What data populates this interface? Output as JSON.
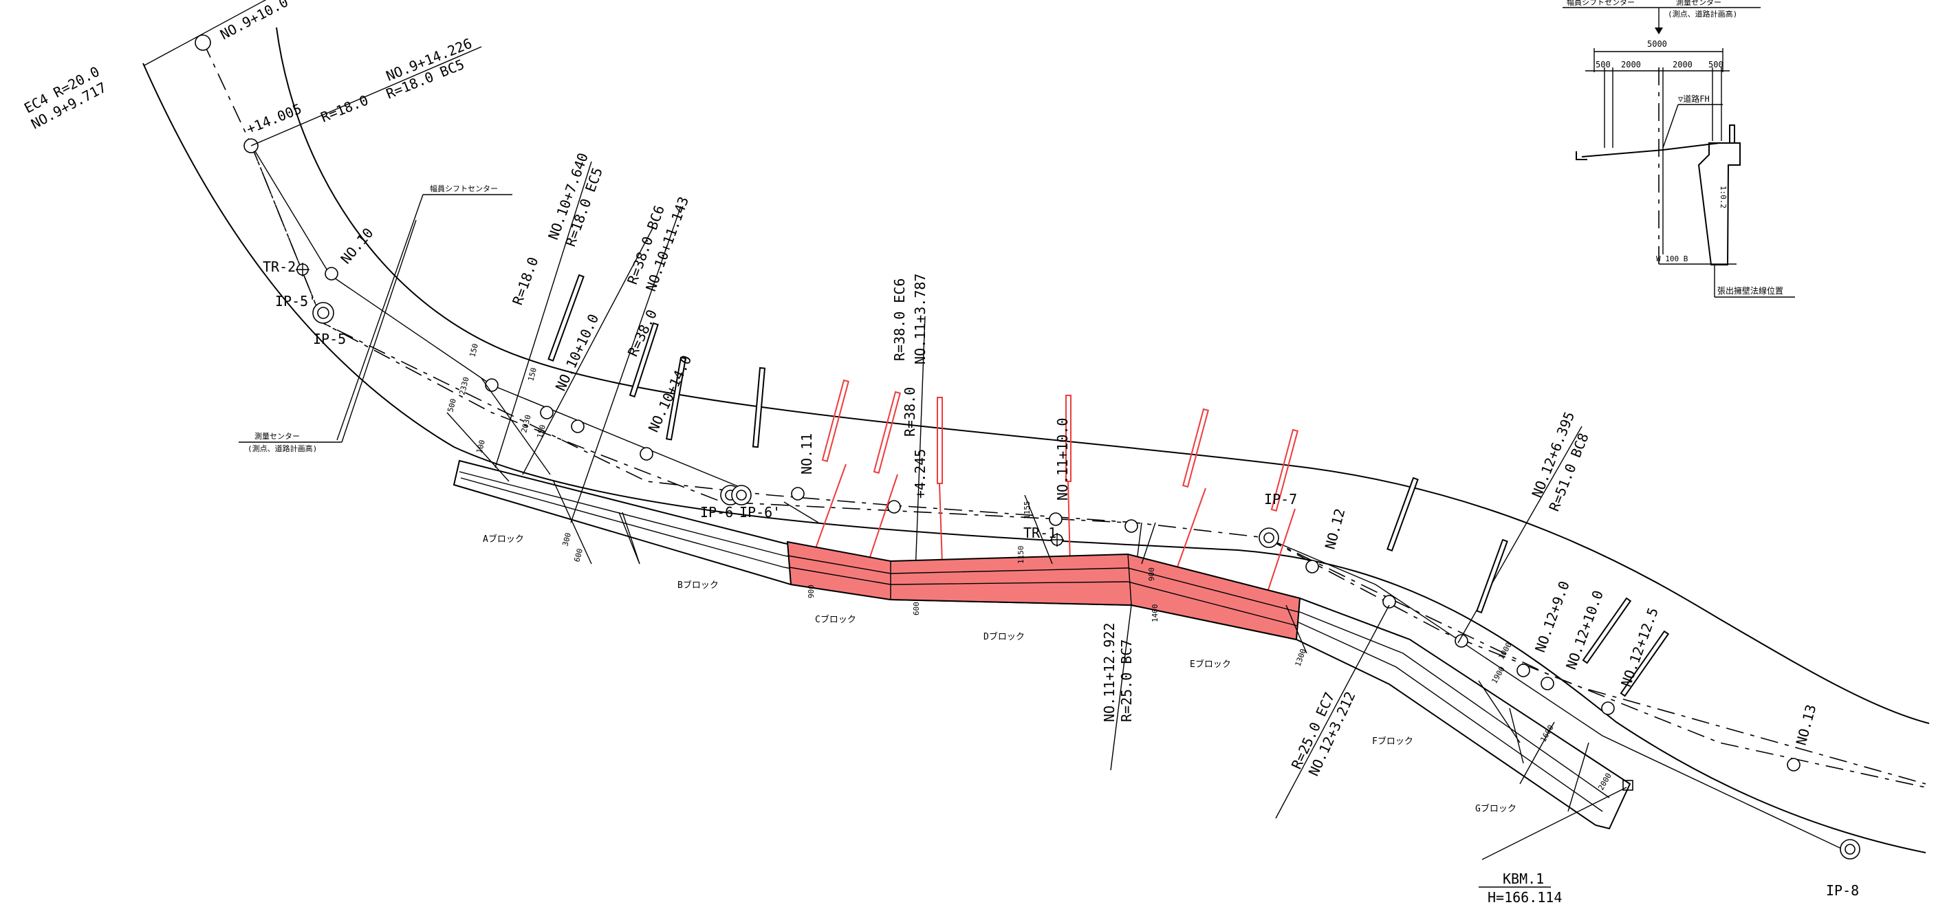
{
  "labels": {
    "no9_10": "NO.9+10.0",
    "ec4_r": "EC4 R=20.0",
    "ec4_no": "NO.9+9.717",
    "no9_14226": "NO.9+14.226",
    "r18_bc5": "R=18.0 BC5",
    "p14005": "+14.005",
    "r18a": "R=18.0",
    "tr2": "TR-2",
    "ip5p": "IP-5'",
    "ip5": "IP-5",
    "no10": "NO.10",
    "shift_center": "幅員シフトセンター",
    "survey_center": "測量センター",
    "survey_center_sub": "(測点、道路計画高)",
    "r18b": "R=18.0",
    "no10_7640": "NO.10+7.640",
    "r18_ec5": "R=18.0 EC5",
    "r38_bc6": "R=38.0 BC6",
    "no10_11143": "NO.10+11.143",
    "no10_10": "NO.10+10.0",
    "r38a": "R=38.0",
    "no10_14": "NO.10+14.0",
    "r38_ec6": "R=38.0 EC6",
    "no11_3787": "NO.11+3.787",
    "r38b": "R=38.0",
    "p4245": "+4.245",
    "no11": "NO.11",
    "ip6": "IP-6",
    "ip6p": "IP-6'",
    "tr1": "TR-1",
    "no11_10": "NO.11+10.0",
    "ip7": "IP-7",
    "no12": "NO.12",
    "no12_6395": "NO.12+6.395",
    "r51_bc8": "R=51.0 BC8",
    "no12_9": "NO.12+9.0",
    "no12_10": "NO.12+10.0",
    "no12_125": "NO.12+12.5",
    "no13": "NO.13",
    "no11_12922": "NO.11+12.922",
    "r25_bc7": "R=25.0 BC7",
    "r25_ec7": "R=25.0 EC7",
    "no12_3212": "NO.12+3.212",
    "block_a": "Aブロック",
    "block_b": "Bブロック",
    "block_c": "Cブロック",
    "block_d": "Dブロック",
    "block_e": "Eブロック",
    "block_f": "Fブロック",
    "block_g": "Gブロック",
    "kbm": "KBM.1",
    "kbm_h": "H=166.114",
    "ip8": "IP-8"
  },
  "dims": {
    "d150a": "150",
    "d150b": "150",
    "d150c": "150",
    "d500": "500",
    "d2330": "2330",
    "d2030": "2030",
    "d100": "100",
    "d300": "300",
    "d600a": "600",
    "d600b": "600",
    "d900a": "900",
    "d1150": "1150",
    "d1155": "1155",
    "d900b": "900",
    "d1400": "1400",
    "d1300": "1300",
    "d1000": "1000",
    "d1900": "1900",
    "d1600": "1600",
    "d2000": "2000"
  },
  "inset": {
    "shift_center": "幅員シフトセンター",
    "survey_center": "測量センター",
    "survey_center_sub": "(測点、道路計画高)",
    "total": "5000",
    "d500l": "500",
    "d2000l": "2000",
    "d2000r": "2000",
    "d500r": "500",
    "road_fh": "▽道路FH",
    "slope": "1:0.2",
    "bottom": "W 100 B",
    "note": "張出擁壁法線位置"
  },
  "colors": {
    "line": "#000000",
    "highlight_fill": "#f47a7a",
    "highlight_line": "#ee3b3b",
    "background": "#ffffff"
  }
}
